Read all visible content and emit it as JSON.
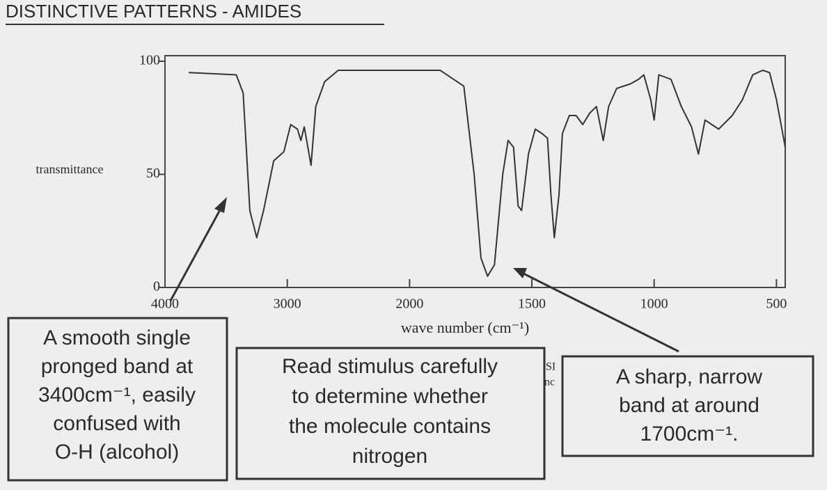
{
  "chart_data": {
    "type": "line",
    "title": "DISTINCTIVE PATTERNS - AMIDES",
    "y_label": "transmittance",
    "x_label": "wave number (cm⁻¹)",
    "xlim": [
      4000,
      464
    ],
    "xticks": [
      4000,
      3000,
      2000,
      1500,
      1000,
      500
    ],
    "ylim": [
      0,
      100
    ],
    "yticks": [
      0,
      50,
      100
    ],
    "grid": false,
    "series": [
      {
        "name": "spectrum",
        "color": "#333333",
        "x": [
          3806,
          3417,
          3361,
          3306,
          3250,
          3194,
          3111,
          3028,
          2972,
          2917,
          2889,
          2861,
          2806,
          2767,
          2694,
          2583,
          2139,
          1875,
          1778,
          1736,
          1708,
          1681,
          1653,
          1619,
          1597,
          1575,
          1556,
          1542,
          1514,
          1486,
          1458,
          1436,
          1422,
          1408,
          1389,
          1375,
          1347,
          1319,
          1292,
          1264,
          1236,
          1208,
          1186,
          1153,
          1097,
          1064,
          1042,
          1014,
          1000,
          981,
          931,
          889,
          847,
          819,
          792,
          736,
          681,
          639,
          597,
          556,
          528,
          500,
          464
        ],
        "values": [
          95,
          94,
          86,
          34,
          22,
          34,
          56,
          60,
          72,
          70,
          65,
          71,
          54,
          80,
          91,
          96,
          96,
          96,
          89,
          50,
          13,
          5,
          10,
          50,
          65,
          62,
          36,
          34,
          59,
          70,
          68,
          66,
          41,
          22,
          41,
          68,
          76,
          76,
          72,
          77,
          80,
          65,
          80,
          88,
          90,
          92,
          94,
          83,
          74,
          94,
          92,
          80,
          71,
          59,
          74,
          70,
          76,
          83,
          94,
          96,
          95,
          83,
          62
        ]
      }
    ],
    "annotations": [
      {
        "lines": [
          "A smooth single",
          "pronged band at",
          "3400cm⁻¹, easily",
          "confused with",
          "O-H (alcohol)"
        ]
      },
      {
        "lines": [
          "Read stimulus carefully",
          "to determine whether",
          "the molecule contains",
          "nitrogen"
        ]
      },
      {
        "lines": [
          "A sharp, narrow",
          "band at around",
          "1700cm⁻¹."
        ]
      }
    ],
    "fragments": [
      "SI",
      "nc"
    ]
  }
}
